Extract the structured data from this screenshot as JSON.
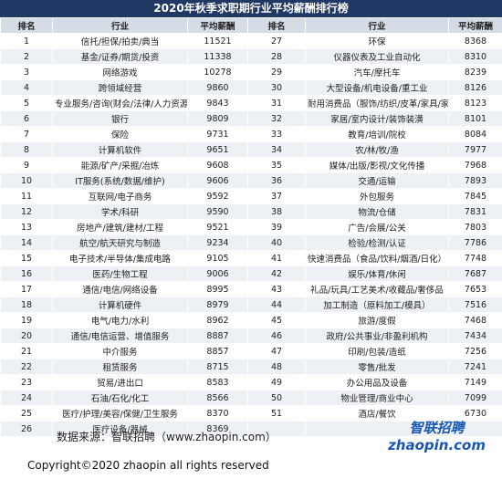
{
  "title": "2020年秋季求职期行业平均薪酬排行榜",
  "table": {
    "headers": [
      "排名",
      "行业",
      "平均薪酬",
      "排名",
      "行业",
      "平均薪酬"
    ],
    "left_rows": [
      [
        1,
        "信托/担保/拍卖/典当",
        11521
      ],
      [
        2,
        "基金/证券/期货/投资",
        11338
      ],
      [
        3,
        "网络游戏",
        10278
      ],
      [
        4,
        "跨领域经营",
        9860
      ],
      [
        5,
        "专业服务/咨询(财会/法律/人力资源等)",
        9843
      ],
      [
        6,
        "银行",
        9809
      ],
      [
        7,
        "保险",
        9731
      ],
      [
        8,
        "计算机软件",
        9651
      ],
      [
        9,
        "能源/矿产/采掘/冶炼",
        9608
      ],
      [
        10,
        "IT服务(系统/数据/维护)",
        9606
      ],
      [
        11,
        "互联网/电子商务",
        9592
      ],
      [
        12,
        "学术/科研",
        9590
      ],
      [
        13,
        "房地产/建筑/建材/工程",
        9521
      ],
      [
        14,
        "航空/航天研究与制造",
        9234
      ],
      [
        15,
        "电子技术/半导体/集成电路",
        9105
      ],
      [
        16,
        "医药/生物工程",
        9006
      ],
      [
        17,
        "通信/电信/网络设备",
        8995
      ],
      [
        18,
        "计算机硬件",
        8979
      ],
      [
        19,
        "电气/电力/水利",
        8962
      ],
      [
        20,
        "通信/电信运营、增值服务",
        8887
      ],
      [
        21,
        "中介服务",
        8857
      ],
      [
        22,
        "租赁服务",
        8715
      ],
      [
        23,
        "贸易/进出口",
        8583
      ],
      [
        24,
        "石油/石化/化工",
        8566
      ],
      [
        25,
        "医疗/护理/美容/保健/卫生服务",
        8370
      ],
      [
        26,
        "医疗设备/器械",
        8369
      ]
    ],
    "right_rows": [
      [
        27,
        "环保",
        8368
      ],
      [
        28,
        "仪器仪表及工业自动化",
        8310
      ],
      [
        29,
        "汽车/摩托车",
        8239
      ],
      [
        30,
        "大型设备/机电设备/重工业",
        8126
      ],
      [
        31,
        "耐用消费品（服饰/纺织/皮革/家具/家电）",
        8123
      ],
      [
        32,
        "家居/室内设计/装饰装潢",
        8101
      ],
      [
        33,
        "教育/培训/院校",
        8084
      ],
      [
        34,
        "农/林/牧/渔",
        7977
      ],
      [
        35,
        "媒体/出版/影视/文化传播",
        7968
      ],
      [
        36,
        "交通/运输",
        7893
      ],
      [
        37,
        "外包服务",
        7845
      ],
      [
        38,
        "物流/仓储",
        7831
      ],
      [
        39,
        "广告/会展/公关",
        7803
      ],
      [
        40,
        "检验/检测/认证",
        7786
      ],
      [
        41,
        "快速消费品（食品/饮料/烟酒/日化）",
        7748
      ],
      [
        42,
        "娱乐/体育/休闲",
        7687
      ],
      [
        43,
        "礼品/玩具/工艺美术/收藏品/奢侈品",
        7653
      ],
      [
        44,
        "加工制造（原料加工/模具）",
        7516
      ],
      [
        45,
        "旅游/度假",
        7468
      ],
      [
        46,
        "政府/公共事业/非盈利机构",
        7434
      ],
      [
        47,
        "印刷/包装/造纸",
        7256
      ],
      [
        48,
        "零售/批发",
        7241
      ],
      [
        49,
        "办公用品及设备",
        7149
      ],
      [
        50,
        "物业管理/商业中心",
        7099
      ],
      [
        51,
        "酒店/餐饮",
        6730
      ]
    ]
  },
  "source": "数据来源：智联招聘（www.zhaopin.com）",
  "logo": {
    "name": "智联招聘",
    "domain": "zhaopin.com"
  },
  "copyright": "Copyright©2020 zhaopin all rights reserved"
}
